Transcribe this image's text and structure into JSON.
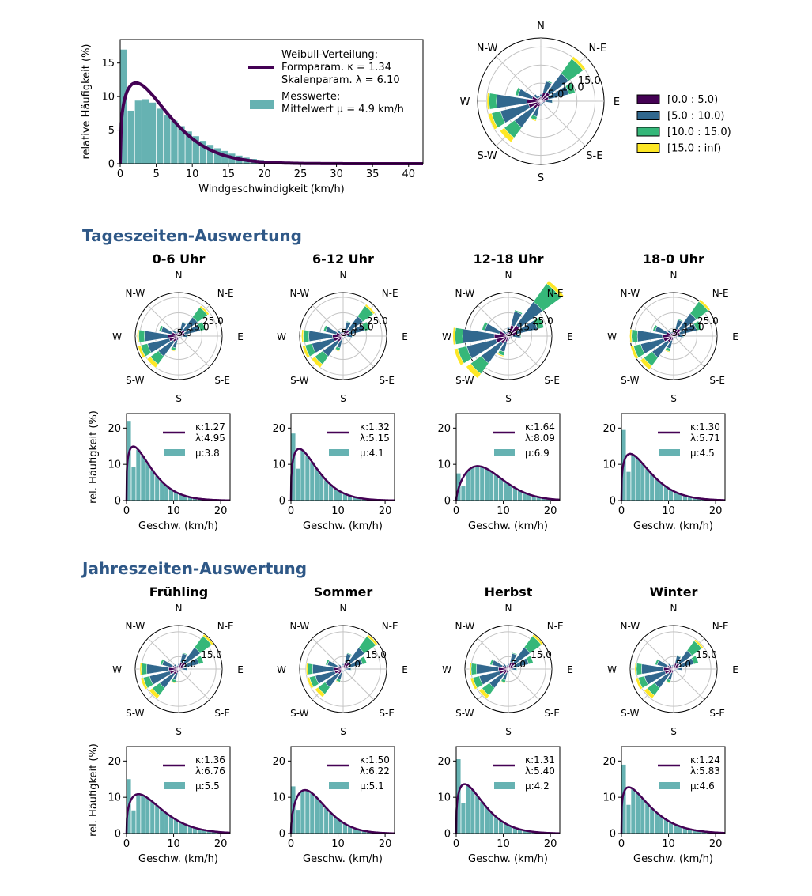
{
  "headings": {
    "daytime": "Tageszeiten-Auswertung",
    "season": "Jahreszeiten-Auswertung"
  },
  "colors": {
    "weibull_line": "#440154",
    "histogram": "#66b2b2",
    "speed_bins": [
      "#440154",
      "#31688e",
      "#35b779",
      "#fde725"
    ],
    "heading": "#2f5887",
    "polar_grid": "#c4c4c4"
  },
  "compass": [
    "N",
    "N-E",
    "E",
    "S-E",
    "S",
    "S-W",
    "W",
    "N-W"
  ],
  "main": {
    "weibull_legend": [
      "Weibull-Verteilung:",
      "Formparam. κ = 1.34",
      "Skalenparam. λ = 6.10"
    ],
    "hist_legend": [
      "Messwerte:",
      "Mittelwert μ = 4.9 km/h"
    ],
    "xlabel": "Windgeschwindigkeit (km/h)",
    "ylabel": "relative Häufigkeit (%)",
    "speed_legend": [
      "[0.0 : 5.0)",
      "[5.0 : 10.0)",
      "[10.0 : 15.0)",
      "[15.0 : inf)"
    ],
    "rose_rlabels": [
      "5.0",
      "10.0",
      "15.0"
    ]
  },
  "small_labels": {
    "xlabel": "Geschw. (km/h)",
    "ylabel": "rel. Häufigkeit (%)"
  },
  "chart_data": [
    {
      "type": "bar",
      "role": "main-histogram",
      "xlabel": "Windgeschwindigkeit (km/h)",
      "ylabel": "relative Häufigkeit (%)",
      "xlim": [
        0,
        42
      ],
      "ylim": [
        0,
        18.5
      ],
      "xticks": [
        0,
        5,
        10,
        15,
        20,
        25,
        30,
        35,
        40
      ],
      "yticks": [
        0,
        5,
        10,
        15
      ],
      "bin_width": 1,
      "values": [
        17.0,
        7.9,
        9.4,
        9.6,
        9.1,
        8.2,
        7.3,
        6.4,
        5.6,
        4.8,
        4.1,
        3.4,
        2.8,
        2.3,
        1.9,
        1.5,
        1.2,
        0.9,
        0.7,
        0.55,
        0.42,
        0.32,
        0.24,
        0.18,
        0.13,
        0.1,
        0.07,
        0.05,
        0.04,
        0.03,
        0.02,
        0.02,
        0.01,
        0.01,
        0.01
      ],
      "weibull": {
        "k": 1.34,
        "lambda": 6.1
      },
      "mean": 4.9
    },
    {
      "type": "wind-rose",
      "role": "main-rose",
      "rmax": 17.5,
      "rticks": [
        5.0,
        10.0,
        15.0
      ],
      "directions_deg": [
        0,
        22.5,
        45,
        67.5,
        90,
        112.5,
        135,
        157.5,
        180,
        202.5,
        225,
        247.5,
        270,
        292.5,
        315,
        337.5
      ],
      "stacks": [
        [
          1.2,
          0.7,
          0,
          0
        ],
        [
          2.5,
          3.2,
          0.3,
          0
        ],
        [
          3.0,
          6.5,
          5.0,
          0.8
        ],
        [
          2.2,
          5.8,
          1.8,
          0
        ],
        [
          1.2,
          2.0,
          0.2,
          0
        ],
        [
          0.7,
          0.4,
          0,
          0
        ],
        [
          0.6,
          0.3,
          0,
          0
        ],
        [
          0.6,
          0.3,
          0,
          0
        ],
        [
          0.8,
          0.5,
          0,
          0
        ],
        [
          1.6,
          2.8,
          1.0,
          0.3
        ],
        [
          2.5,
          6.5,
          3.5,
          1.5
        ],
        [
          3.5,
          8.0,
          2.5,
          1.0
        ],
        [
          3.8,
          8.5,
          2.0,
          0.6
        ],
        [
          2.5,
          4.0,
          0.8,
          0
        ],
        [
          1.2,
          1.2,
          0,
          0
        ],
        [
          1.0,
          0.5,
          0,
          0
        ]
      ],
      "legend": [
        "[0.0 : 5.0)",
        "[5.0 : 10.0)",
        "[10.0 : 15.0)",
        "[15.0 : inf)"
      ]
    }
  ],
  "groups": [
    {
      "panels": [
        {
          "title": "0-6 Uhr",
          "k_label": "κ:1.27",
          "lambda_label": "λ:4.95",
          "mu_label": "μ:3.8",
          "rose": {
            "rticks": [
              5.0,
              15.0,
              25.0
            ],
            "rmax": 28,
            "scale": 1.8,
            "shift": [
              -3,
              0,
              0,
              0,
              0,
              0,
              3
            ]
          },
          "hist": {
            "k": 1.27,
            "lambda": 4.95,
            "zero_bin": 22.0
          }
        },
        {
          "title": "6-12 Uhr",
          "k_label": "κ:1.32",
          "lambda_label": "λ:5.15",
          "mu_label": "μ:4.1",
          "rose": {
            "rticks": [
              5.0,
              15.0,
              25.0
            ],
            "rmax": 28,
            "scale": 1.8,
            "shift": [
              -2,
              0,
              0,
              0,
              0,
              0,
              2
            ]
          },
          "hist": {
            "k": 1.32,
            "lambda": 5.15,
            "zero_bin": 18.5
          }
        },
        {
          "title": "12-18 Uhr",
          "k_label": "κ:1.64",
          "lambda_label": "λ:8.09",
          "mu_label": "μ:6.9",
          "rose": {
            "rticks": [
              5.0,
              15.0,
              25.0
            ],
            "rmax": 28,
            "scale": 2.4,
            "shift": [
              5,
              0,
              0,
              0,
              0,
              0,
              -5
            ]
          },
          "hist": {
            "k": 1.64,
            "lambda": 8.09,
            "zero_bin": 7.5
          }
        },
        {
          "title": "18-0 Uhr",
          "k_label": "κ:1.30",
          "lambda_label": "λ:5.71",
          "mu_label": "μ:4.5",
          "rose": {
            "rticks": [
              5.0,
              15.0,
              25.0
            ],
            "rmax": 28,
            "scale": 1.9,
            "shift": [
              0,
              0,
              0,
              0,
              0,
              0,
              1
            ]
          },
          "hist": {
            "k": 1.3,
            "lambda": 5.71,
            "zero_bin": 19.5
          }
        }
      ]
    },
    {
      "panels": [
        {
          "title": "Frühling",
          "k_label": "κ:1.36",
          "lambda_label": "λ:6.76",
          "mu_label": "μ:5.5",
          "rose": {
            "rticks": [
              5.0,
              15.0
            ],
            "rmax": 17.5,
            "scale": 1.05,
            "shift": [
              2,
              0,
              0,
              0,
              0,
              0,
              -1
            ]
          },
          "hist": {
            "k": 1.36,
            "lambda": 6.76,
            "zero_bin": 15.0
          }
        },
        {
          "title": "Sommer",
          "k_label": "κ:1.50",
          "lambda_label": "λ:6.22",
          "mu_label": "μ:5.1",
          "rose": {
            "rticks": [
              5.0,
              15.0
            ],
            "rmax": 17.5,
            "scale": 1.0,
            "shift": [
              3,
              0,
              0,
              0,
              0,
              0,
              -2
            ]
          },
          "hist": {
            "k": 1.5,
            "lambda": 6.22,
            "zero_bin": 13.0
          }
        },
        {
          "title": "Herbst",
          "k_label": "κ:1.31",
          "lambda_label": "λ:5.40",
          "mu_label": "μ:4.2",
          "rose": {
            "rticks": [
              5.0,
              15.0
            ],
            "rmax": 17.5,
            "scale": 1.05,
            "shift": [
              2,
              0,
              0,
              0,
              0,
              0,
              1
            ]
          },
          "hist": {
            "k": 1.31,
            "lambda": 5.4,
            "zero_bin": 20.5
          }
        },
        {
          "title": "Winter",
          "k_label": "κ:1.24",
          "lambda_label": "λ:5.83",
          "mu_label": "μ:4.6",
          "rose": {
            "rticks": [
              5.0,
              15.0
            ],
            "rmax": 17.5,
            "scale": 1.05,
            "shift": [
              -2,
              0,
              0,
              0,
              0,
              0,
              2
            ]
          },
          "hist": {
            "k": 1.24,
            "lambda": 5.83,
            "zero_bin": 19.0
          }
        }
      ],
      "small_hist_axes": {
        "xlim": [
          0,
          22
        ],
        "ylim": [
          0,
          24
        ],
        "xticks": [
          0,
          10,
          20
        ],
        "yticks": [
          0,
          10,
          20
        ]
      }
    }
  ]
}
